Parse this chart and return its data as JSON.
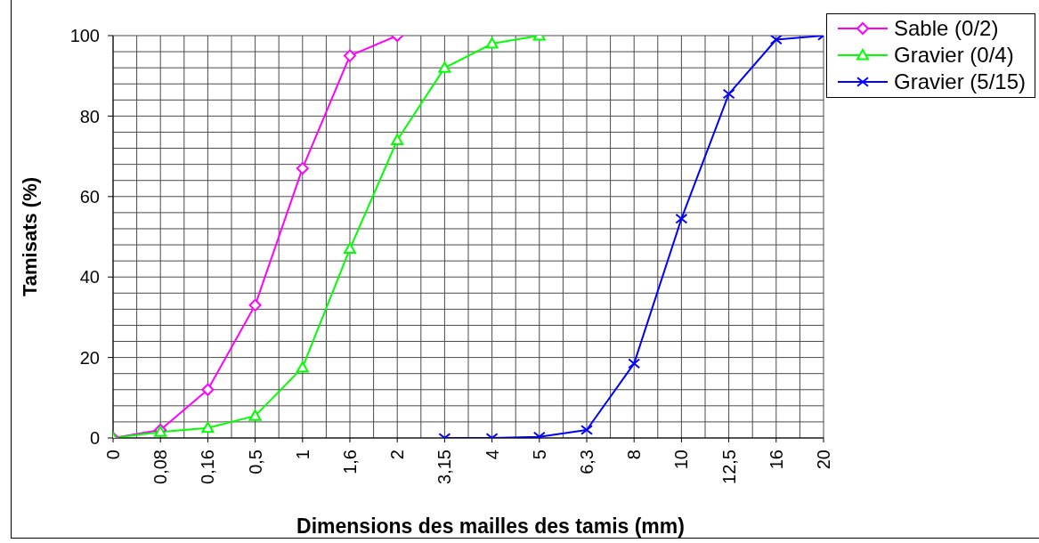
{
  "chart_data": {
    "type": "line",
    "xlabel": "Dimensions des mailles des tamis (mm)",
    "ylabel": "Tamisats (%)",
    "categories": [
      "0",
      "0,08",
      "0,16",
      "0,5",
      "1",
      "1,6",
      "2",
      "3,15",
      "4",
      "5",
      "6,3",
      "8",
      "10",
      "12,5",
      "16",
      "20"
    ],
    "series": [
      {
        "name": "Sable (0/2)",
        "color": "#ff00ff",
        "marker": "diamond",
        "values": [
          0,
          2,
          12,
          33,
          67,
          95,
          100,
          null,
          null,
          null,
          null,
          null,
          null,
          null,
          null,
          null
        ]
      },
      {
        "name": "Gravier (0/4)",
        "color": "#00ff00",
        "marker": "triangle",
        "values": [
          0,
          1.5,
          2.5,
          5.5,
          17.5,
          47,
          74,
          92,
          98,
          100,
          null,
          null,
          null,
          null,
          null,
          null
        ]
      },
      {
        "name": "Gravier (5/15)",
        "color": "#0000ff",
        "marker": "cross",
        "values": [
          null,
          null,
          null,
          null,
          null,
          null,
          null,
          0,
          0,
          0.3,
          2,
          18.5,
          54.5,
          85.5,
          99,
          100
        ]
      }
    ],
    "ylim": [
      0,
      100
    ],
    "yticks": [
      0,
      20,
      40,
      60,
      80,
      100
    ],
    "grid": true,
    "legend": "top right"
  }
}
